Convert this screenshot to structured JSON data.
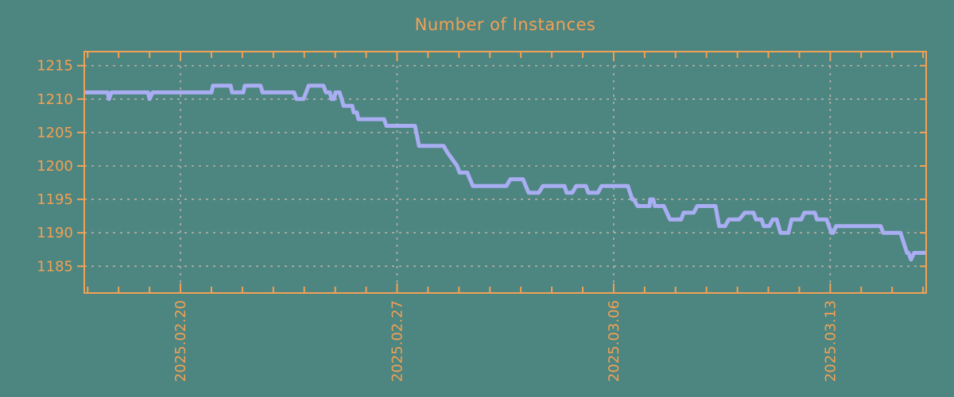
{
  "title": "Number of Instances",
  "colors": {
    "background": "#4d8580",
    "axis": "#f1a155",
    "text": "#f1a155",
    "line": "#a9adf2",
    "grid": "#b6b0a8"
  },
  "chart_data": {
    "type": "line",
    "title": "Number of Instances",
    "xlabel": "",
    "ylabel": "",
    "x_unit": "days relative to 2025-02-20",
    "xlim": [
      -3.11,
      24.1
    ],
    "ylim": [
      1181.0,
      1217.1
    ],
    "y_ticks": [
      1185,
      1190,
      1195,
      1200,
      1205,
      1210,
      1215
    ],
    "x_major_ticks": [
      {
        "day": 0,
        "label": "2025.02.20"
      },
      {
        "day": 7,
        "label": "2025.02.27"
      },
      {
        "day": 14,
        "label": "2025.03.06"
      },
      {
        "day": 21,
        "label": "2025.03.13"
      }
    ],
    "x_minor_tick_every_days": 1,
    "grid": true,
    "legend": "none",
    "series": [
      {
        "name": "instances",
        "points": [
          [
            -3.11,
            1211
          ],
          [
            -2.36,
            1211
          ],
          [
            -2.31,
            1210
          ],
          [
            -2.23,
            1211
          ],
          [
            -1.05,
            1211
          ],
          [
            -1.0,
            1210
          ],
          [
            -0.9,
            1211
          ],
          [
            1.0,
            1211
          ],
          [
            1.05,
            1212
          ],
          [
            1.62,
            1212
          ],
          [
            1.67,
            1211
          ],
          [
            2.03,
            1211
          ],
          [
            2.08,
            1212
          ],
          [
            2.59,
            1212
          ],
          [
            2.65,
            1211
          ],
          [
            3.67,
            1211
          ],
          [
            3.75,
            1210
          ],
          [
            3.98,
            1210
          ],
          [
            4.14,
            1212
          ],
          [
            4.62,
            1212
          ],
          [
            4.7,
            1211
          ],
          [
            4.83,
            1211
          ],
          [
            4.88,
            1210
          ],
          [
            4.96,
            1210
          ],
          [
            5.01,
            1211
          ],
          [
            5.14,
            1211
          ],
          [
            5.21,
            1210
          ],
          [
            5.27,
            1209
          ],
          [
            5.55,
            1209
          ],
          [
            5.6,
            1208
          ],
          [
            5.7,
            1208
          ],
          [
            5.75,
            1207
          ],
          [
            6.58,
            1207
          ],
          [
            6.65,
            1206
          ],
          [
            7.58,
            1206
          ],
          [
            7.71,
            1203
          ],
          [
            8.5,
            1203
          ],
          [
            8.63,
            1202
          ],
          [
            8.94,
            1200
          ],
          [
            9.02,
            1199
          ],
          [
            9.27,
            1199
          ],
          [
            9.45,
            1197
          ],
          [
            10.53,
            1197
          ],
          [
            10.66,
            1198
          ],
          [
            11.07,
            1198
          ],
          [
            11.25,
            1196
          ],
          [
            11.58,
            1196
          ],
          [
            11.71,
            1197
          ],
          [
            12.41,
            1197
          ],
          [
            12.48,
            1196
          ],
          [
            12.66,
            1196
          ],
          [
            12.79,
            1197
          ],
          [
            13.1,
            1197
          ],
          [
            13.18,
            1196
          ],
          [
            13.49,
            1196
          ],
          [
            13.61,
            1197
          ],
          [
            14.46,
            1197
          ],
          [
            14.6,
            1195
          ],
          [
            14.65,
            1195
          ],
          [
            14.77,
            1194
          ],
          [
            15.16,
            1194
          ],
          [
            15.18,
            1195
          ],
          [
            15.28,
            1195
          ],
          [
            15.33,
            1194
          ],
          [
            15.62,
            1194
          ],
          [
            15.82,
            1192
          ],
          [
            16.18,
            1192
          ],
          [
            16.26,
            1193
          ],
          [
            16.59,
            1193
          ],
          [
            16.7,
            1194
          ],
          [
            17.29,
            1194
          ],
          [
            17.41,
            1191
          ],
          [
            17.6,
            1191
          ],
          [
            17.72,
            1192
          ],
          [
            18.06,
            1192
          ],
          [
            18.24,
            1193
          ],
          [
            18.52,
            1193
          ],
          [
            18.6,
            1192
          ],
          [
            18.78,
            1192
          ],
          [
            18.85,
            1191
          ],
          [
            19.03,
            1191
          ],
          [
            19.14,
            1192
          ],
          [
            19.27,
            1192
          ],
          [
            19.39,
            1190
          ],
          [
            19.65,
            1190
          ],
          [
            19.75,
            1192
          ],
          [
            20.06,
            1192
          ],
          [
            20.16,
            1193
          ],
          [
            20.5,
            1193
          ],
          [
            20.57,
            1192
          ],
          [
            20.88,
            1192
          ],
          [
            21.04,
            1190
          ],
          [
            21.09,
            1190
          ],
          [
            21.19,
            1191
          ],
          [
            22.63,
            1191
          ],
          [
            22.71,
            1190
          ],
          [
            23.27,
            1190
          ],
          [
            23.48,
            1187
          ],
          [
            23.53,
            1187
          ],
          [
            23.61,
            1186
          ],
          [
            23.71,
            1187
          ],
          [
            24.1,
            1187
          ]
        ]
      }
    ]
  }
}
